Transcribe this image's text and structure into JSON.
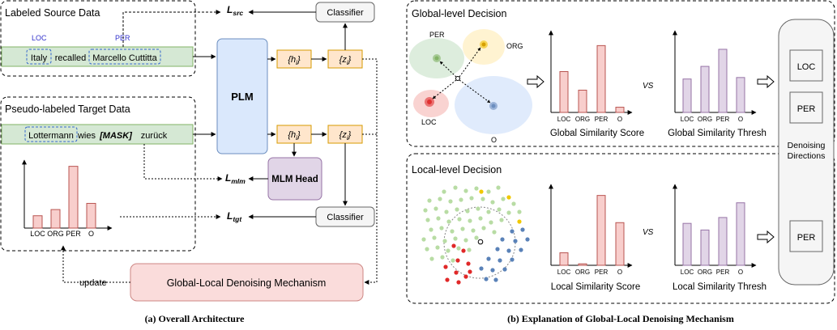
{
  "left_panel": {
    "labeled_source": {
      "title": "Labeled Source Data",
      "tag_loc": "LOC",
      "tag_per": "PER",
      "token_italy": "Italy",
      "token_recalled": "recalled",
      "token_marcello": "Marcello Cuttitta"
    },
    "pseudo_target": {
      "title": "Pseudo-labeled Target Data",
      "token_lottermann": "Lottermann",
      "token_wies": "wies",
      "token_mask": "[MASK]",
      "token_zuruck": "zurück"
    },
    "plm_label": "PLM",
    "h_label": "{h",
    "z_label": "{z",
    "sub_i": "i",
    "close_brace": "}",
    "classifier_label": "Classifier",
    "mlm_head_label": "MLM Head",
    "loss_L": "L",
    "loss_src_sub": "src",
    "loss_mlm_sub": "mlm",
    "loss_tgt_sub": "tgt",
    "mechanism_label": "Global-Local Denoising Mechanism",
    "update_label": "update",
    "caption": "(a) Overall Architecture"
  },
  "right_panel": {
    "global_title": "Global-level Decision",
    "local_title": "Local-level Decision",
    "cluster_per": "PER",
    "cluster_org": "ORG",
    "cluster_loc": "LOC",
    "cluster_o": "O",
    "vs_label": "VS",
    "global_score_title": "Global Similarity Score",
    "global_thresh_title": "Global Similarity Thresh",
    "local_score_title": "Local Similarity Score",
    "local_thresh_title": "Local Similarity Thresh",
    "denoising_label_1": "Denoising",
    "denoising_label_2": "Directions",
    "result_loc": "LOC",
    "result_per_global": "PER",
    "result_per_local": "PER",
    "caption": "(b)  Explanation of Global-Local Denoising Mechanism"
  },
  "chart_data": [
    {
      "type": "bar",
      "categories": [
        "LOC",
        "ORG",
        "PER",
        "O"
      ],
      "values": [
        0.2,
        0.3,
        1.0,
        0.4
      ],
      "ylim": [
        0,
        1.1
      ]
    },
    {
      "type": "bar",
      "categories": [
        "LOC",
        "ORG",
        "PER",
        "O"
      ],
      "values": [
        0.55,
        0.3,
        0.9,
        0.07
      ],
      "ylim": [
        0,
        1.1
      ],
      "title": "Global Similarity Score"
    },
    {
      "type": "bar",
      "categories": [
        "LOC",
        "ORG",
        "PER",
        "O"
      ],
      "values": [
        0.45,
        0.62,
        0.85,
        0.47
      ],
      "ylim": [
        0,
        1.1
      ],
      "title": "Global Similarity Thresh"
    },
    {
      "type": "bar",
      "categories": [
        "LOC",
        "ORG",
        "PER",
        "O"
      ],
      "values": [
        0.17,
        0.02,
        0.95,
        0.58
      ],
      "ylim": [
        0,
        1.1
      ],
      "title": "Local Similarity Score"
    },
    {
      "type": "bar",
      "categories": [
        "LOC",
        "ORG",
        "PER",
        "O"
      ],
      "values": [
        0.57,
        0.48,
        0.65,
        0.85
      ],
      "ylim": [
        0,
        1.1
      ],
      "title": "Local Similarity Thresh"
    }
  ],
  "colors": {
    "green_fill": "#d5e8d4",
    "green_stroke": "#82b366",
    "blue_fill": "#dae8fc",
    "blue_stroke": "#6c8ebf",
    "orange_fill": "#ffe6cc",
    "orange_stroke": "#d79b00",
    "purple_fill": "#e1d5e7",
    "purple_stroke": "#9673a6",
    "red_fill": "#f8cecc",
    "red_stroke": "#b85450",
    "gray_fill": "#f5f5f5",
    "gray_stroke": "#666666",
    "tag_blue": "#3333cc"
  }
}
